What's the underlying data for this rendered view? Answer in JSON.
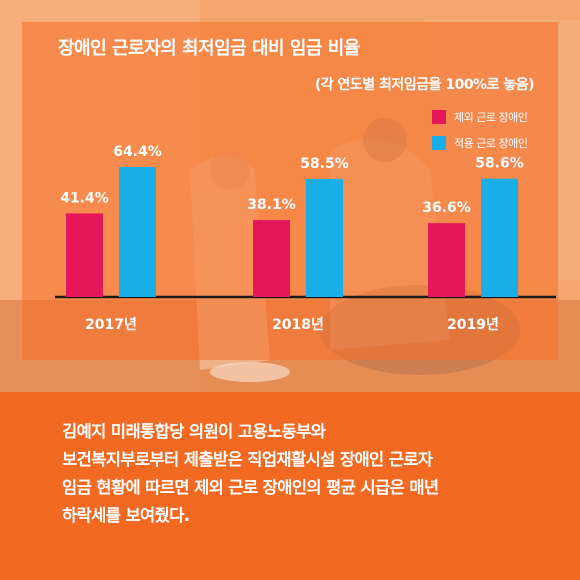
{
  "colors": {
    "background": "#f26a21",
    "series_excluded": "#e5175a",
    "series_applied": "#1aaee8",
    "text": "#ffffff"
  },
  "chart_data": {
    "type": "bar",
    "title": "장애인 근로자의 최저임금 대비 임금 비율",
    "subtitle": "(각 연도별 최저임금을 100%로 놓음)",
    "categories": [
      "2017년",
      "2018년",
      "2019년"
    ],
    "series": [
      {
        "name": "제외 근로 장애인",
        "values": [
          41.4,
          38.1,
          36.6
        ],
        "labels": [
          "41.4%",
          "38.1%",
          "36.6%"
        ],
        "color": "#e5175a"
      },
      {
        "name": "적용 근로 장애인",
        "values": [
          64.4,
          58.5,
          58.6
        ],
        "labels": [
          "64.4%",
          "58.5%",
          "58.6%"
        ],
        "color": "#1aaee8"
      }
    ],
    "ylim": [
      0,
      100
    ],
    "grid": false,
    "legend_position": "top-right"
  },
  "article": {
    "lines": [
      "김예지 미래통합당 의원이 고용노동부와",
      "보건복지부로부터 제출받은 직업재활시설 장애인 근로자",
      "임금 현황에 따르면 제외 근로 장애인의 평균 시급은 매년",
      "하락세를 보여줬다."
    ]
  }
}
